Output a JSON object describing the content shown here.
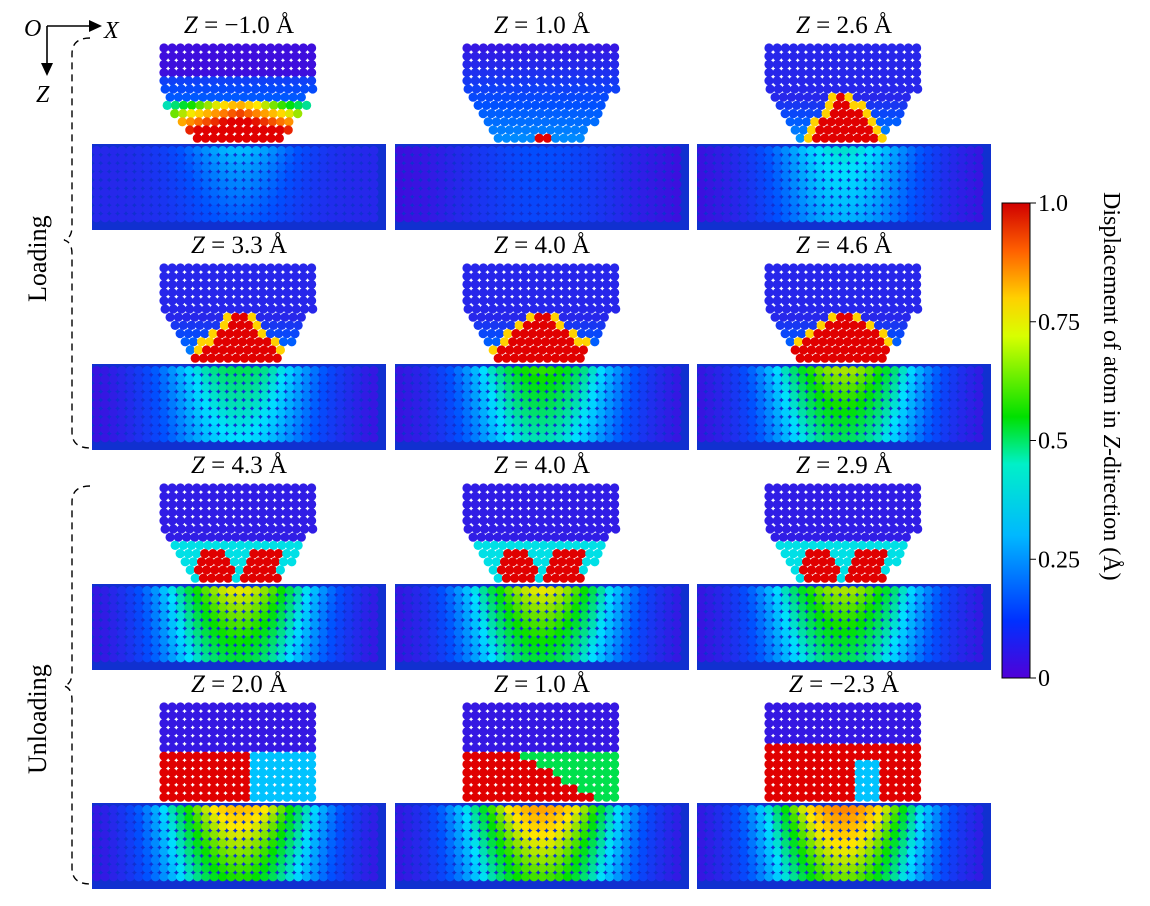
{
  "axes": {
    "origin": "O",
    "x": "X",
    "z": "Z"
  },
  "phases": {
    "loading": "Loading",
    "unloading": "Unloading"
  },
  "panels": [
    {
      "var": "Z",
      "value": " = −1.0 Å",
      "contact": 0.0,
      "pattern": "cap"
    },
    {
      "var": "Z",
      "value": " = 1.0 Å",
      "contact": 0.1,
      "pattern": "small"
    },
    {
      "var": "Z",
      "value": " = 2.6 Å",
      "contact": 0.6,
      "pattern": "tri"
    },
    {
      "var": "Z",
      "value": " = 3.3 Å",
      "contact": 0.8,
      "pattern": "tri"
    },
    {
      "var": "Z",
      "value": " = 4.0 Å",
      "contact": 1.0,
      "pattern": "tri"
    },
    {
      "var": "Z",
      "value": " = 4.6 Å",
      "contact": 1.2,
      "pattern": "tri"
    },
    {
      "var": "Z",
      "value": " = 4.3 Å",
      "contact": 1.3,
      "pattern": "vee"
    },
    {
      "var": "Z",
      "value": " = 4.0 Å",
      "contact": 1.3,
      "pattern": "vee"
    },
    {
      "var": "Z",
      "value": " = 2.9 Å",
      "contact": 1.2,
      "pattern": "vee"
    },
    {
      "var": "Z",
      "value": " = 2.0 Å",
      "contact": 1.5,
      "pattern": "block"
    },
    {
      "var": "Z",
      "value": " = 1.0 Å",
      "contact": 1.6,
      "pattern": "slant"
    },
    {
      "var": "Z",
      "value": " = −2.3 Å",
      "contact": 1.7,
      "pattern": "full"
    }
  ],
  "colorbar": {
    "label_prefix": "Displacement of atom in ",
    "label_var": "Z",
    "label_suffix": "-direction (Å)",
    "ticks": [
      "0",
      "0.25",
      "0.5",
      "0.75",
      "1.0"
    ],
    "range": [
      0,
      1
    ],
    "colors": [
      "#4b00d6",
      "#0050ff",
      "#00e0ff",
      "#00e000",
      "#ffe800",
      "#ff7a00",
      "#e00000"
    ]
  }
}
